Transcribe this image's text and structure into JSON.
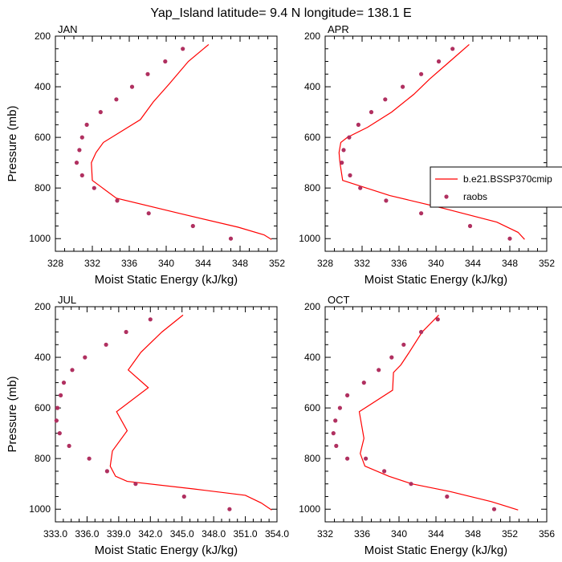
{
  "title": "Yap_Island  latitude= 9.4 N longitude= 138.1 E",
  "colors": {
    "model_line": "#ff0000",
    "raobs_marker": "#b03060",
    "frame": "#000000"
  },
  "legend": {
    "placement": "right, between APR and OCT panels",
    "entries": [
      {
        "label": "b.e21.BSSP370cmip",
        "symbol": "line",
        "color": "#ff0000"
      },
      {
        "label": "raobs",
        "symbol": "dot",
        "color": "#b03060"
      }
    ]
  },
  "chart_data": [
    {
      "type": "line",
      "panel_label": "JAN",
      "xlabel": "Moist Static Energy (kJ/kg)",
      "ylabel": "Pressure (mb)",
      "xlim": [
        328,
        352
      ],
      "ylim": [
        200,
        1050
      ],
      "y_inverted": true,
      "xticks": [
        328,
        332,
        336,
        340,
        344,
        348,
        352
      ],
      "xtick_labels": [
        "328",
        "332",
        "336",
        "340",
        "344",
        "348",
        "352"
      ],
      "yticks": [
        200,
        400,
        600,
        800,
        1000
      ],
      "ytick_labels": [
        "200",
        "400",
        "600",
        "800",
        "1000"
      ],
      "series": [
        {
          "name": "b.e21.BSSP370cmip",
          "style": "line",
          "x": [
            344.6,
            342.4,
            340.3,
            338.6,
            337.2,
            333.2,
            332.4,
            331.9,
            332.0,
            334.6,
            341.4,
            347.8,
            350.6,
            351.4
          ],
          "y": [
            233,
            300,
            390,
            460,
            530,
            620,
            660,
            700,
            770,
            840,
            900,
            955,
            985,
            1003
          ]
        },
        {
          "name": "raobs",
          "style": "markers",
          "x": [
            341.8,
            339.9,
            338.0,
            336.3,
            334.6,
            332.9,
            331.4,
            330.9,
            330.6,
            330.3,
            330.9,
            332.2,
            334.7,
            338.1,
            342.9,
            347.0
          ],
          "y": [
            250,
            300,
            350,
            400,
            450,
            500,
            550,
            600,
            650,
            700,
            750,
            800,
            850,
            900,
            950,
            1000
          ]
        }
      ]
    },
    {
      "type": "line",
      "panel_label": "APR",
      "xlabel": "Moist Static Energy (kJ/kg)",
      "ylabel": "",
      "xlim": [
        328,
        352
      ],
      "ylim": [
        200,
        1050
      ],
      "y_inverted": true,
      "xticks": [
        328,
        332,
        336,
        340,
        344,
        348,
        352
      ],
      "xtick_labels": [
        "328",
        "332",
        "336",
        "340",
        "344",
        "348",
        "352"
      ],
      "yticks": [
        200,
        400,
        600,
        800,
        1000
      ],
      "ytick_labels": [
        "200",
        "400",
        "600",
        "800",
        "1000"
      ],
      "series": [
        {
          "name": "b.e21.BSSP370cmip",
          "style": "line",
          "x": [
            343.6,
            341.5,
            339.3,
            337.6,
            335.2,
            332.6,
            330.4,
            329.7,
            329.5,
            329.6,
            329.9,
            335.0,
            340.8,
            346.6,
            348.9,
            349.6
          ],
          "y": [
            233,
            300,
            370,
            430,
            500,
            560,
            600,
            620,
            660,
            700,
            770,
            830,
            880,
            935,
            975,
            1003
          ]
        },
        {
          "name": "raobs",
          "style": "markers",
          "x": [
            341.8,
            340.3,
            338.4,
            336.4,
            334.5,
            333.0,
            331.6,
            330.6,
            330.0,
            329.8,
            330.7,
            331.8,
            334.6,
            338.4,
            343.7,
            348.0
          ],
          "y": [
            250,
            300,
            350,
            400,
            450,
            500,
            550,
            600,
            650,
            700,
            750,
            800,
            850,
            900,
            950,
            1000
          ]
        }
      ]
    },
    {
      "type": "line",
      "panel_label": "JUL",
      "xlabel": "Moist Static Energy (kJ/kg)",
      "ylabel": "Pressure (mb)",
      "xlim": [
        333,
        354
      ],
      "ylim": [
        200,
        1050
      ],
      "y_inverted": true,
      "xticks": [
        333,
        336,
        339,
        342,
        345,
        348,
        351,
        354
      ],
      "xtick_labels": [
        "333.0",
        "336.0",
        "339.0",
        "342.0",
        "345.0",
        "348.0",
        "351.0",
        "354.0"
      ],
      "yticks": [
        200,
        400,
        600,
        800,
        1000
      ],
      "ytick_labels": [
        "200",
        "400",
        "600",
        "800",
        "1000"
      ],
      "series": [
        {
          "name": "b.e21.BSSP370cmip",
          "style": "line",
          "x": [
            345.1,
            343.1,
            341.1,
            339.9,
            341.8,
            338.8,
            339.8,
            338.4,
            338.2,
            338.7,
            339.8,
            346.1,
            351.0,
            352.5,
            353.5
          ],
          "y": [
            233,
            300,
            380,
            450,
            520,
            615,
            690,
            770,
            830,
            870,
            890,
            920,
            945,
            975,
            1003
          ]
        },
        {
          "name": "raobs",
          "style": "markers",
          "x": [
            342.0,
            339.7,
            337.8,
            335.8,
            334.6,
            333.8,
            333.5,
            333.2,
            333.1,
            333.4,
            334.3,
            336.2,
            337.9,
            340.6,
            345.2,
            349.5
          ],
          "y": [
            250,
            300,
            350,
            400,
            450,
            500,
            550,
            600,
            650,
            700,
            750,
            800,
            850,
            900,
            950,
            1000
          ]
        }
      ]
    },
    {
      "type": "line",
      "panel_label": "OCT",
      "xlabel": "Moist Static Energy (kJ/kg)",
      "ylabel": "",
      "xlim": [
        332,
        356
      ],
      "ylim": [
        200,
        1050
      ],
      "y_inverted": true,
      "xticks": [
        332,
        336,
        340,
        344,
        348,
        352,
        356
      ],
      "xtick_labels": [
        "332",
        "336",
        "340",
        "344",
        "348",
        "352",
        "356"
      ],
      "yticks": [
        200,
        400,
        600,
        800,
        1000
      ],
      "ytick_labels": [
        "200",
        "400",
        "600",
        "800",
        "1000"
      ],
      "series": [
        {
          "name": "b.e21.BSSP370cmip",
          "style": "line",
          "x": [
            344.3,
            342.5,
            341.1,
            340.2,
            339.4,
            339.3,
            335.7,
            336.2,
            335.8,
            336.3,
            338.9,
            341.4,
            345.5,
            350.0,
            352.9
          ],
          "y": [
            233,
            300,
            380,
            430,
            460,
            530,
            615,
            720,
            780,
            830,
            870,
            900,
            930,
            970,
            1003
          ]
        },
        {
          "name": "raobs",
          "style": "markers",
          "x": [
            344.2,
            342.4,
            340.5,
            339.2,
            337.8,
            336.2,
            334.4,
            333.6,
            333.1,
            332.9,
            333.2,
            334.4,
            336.4,
            338.4,
            341.3,
            345.2,
            350.3
          ],
          "y": [
            250,
            300,
            350,
            400,
            450,
            500,
            550,
            600,
            650,
            700,
            750,
            800,
            800,
            850,
            900,
            950,
            1000
          ]
        }
      ]
    }
  ]
}
